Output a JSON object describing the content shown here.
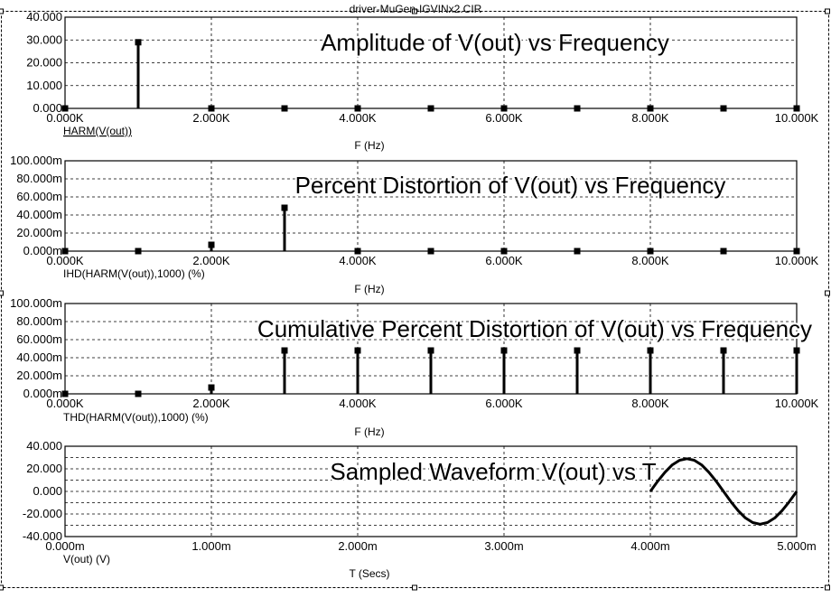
{
  "document_title": "driver-MuGen-IGVINx2.CIR",
  "chart_data": [
    {
      "type": "bar",
      "title": "Amplitude of V(out) vs Frequency",
      "xlabel": "F (Hz)",
      "trace_label": "HARM(V(out))",
      "x_ticks": [
        "0.000K",
        "2.000K",
        "4.000K",
        "6.000K",
        "8.000K",
        "10.000K"
      ],
      "y_ticks": [
        "40.000",
        "30.000",
        "20.000",
        "10.000",
        "0.000"
      ],
      "xlim": [
        0,
        10000
      ],
      "ylim": [
        0,
        40
      ],
      "grid": true,
      "x": [
        0,
        1000,
        2000,
        3000,
        4000,
        5000,
        6000,
        7000,
        8000,
        9000,
        10000
      ],
      "values": [
        0,
        29,
        0,
        0,
        0,
        0,
        0,
        0,
        0,
        0,
        0
      ]
    },
    {
      "type": "bar",
      "title": "Percent Distortion of V(out) vs Frequency",
      "xlabel": "F (Hz)",
      "trace_label": "IHD(HARM(V(out)),1000) (%)",
      "x_ticks": [
        "0.000K",
        "2.000K",
        "4.000K",
        "6.000K",
        "8.000K",
        "10.000K"
      ],
      "y_ticks": [
        "100.000m",
        "80.000m",
        "60.000m",
        "40.000m",
        "20.000m",
        "0.000m"
      ],
      "xlim": [
        0,
        10000
      ],
      "ylim": [
        0,
        100
      ],
      "grid": true,
      "x": [
        0,
        1000,
        2000,
        3000,
        4000,
        5000,
        6000,
        7000,
        8000,
        9000,
        10000
      ],
      "values": [
        0,
        0,
        7,
        48,
        0,
        0,
        0,
        0,
        0,
        0,
        0
      ]
    },
    {
      "type": "bar",
      "title": "Cumulative Percent Distortion of V(out) vs Frequency",
      "xlabel": "F (Hz)",
      "trace_label": "THD(HARM(V(out)),1000) (%)",
      "x_ticks": [
        "0.000K",
        "2.000K",
        "4.000K",
        "6.000K",
        "8.000K",
        "10.000K"
      ],
      "y_ticks": [
        "100.000m",
        "80.000m",
        "60.000m",
        "40.000m",
        "20.000m",
        "0.000m"
      ],
      "xlim": [
        0,
        10000
      ],
      "ylim": [
        0,
        100
      ],
      "grid": true,
      "x": [
        0,
        1000,
        2000,
        3000,
        4000,
        5000,
        6000,
        7000,
        8000,
        9000,
        10000
      ],
      "values": [
        0,
        0,
        7,
        48,
        48,
        48,
        48,
        48,
        48,
        48,
        48
      ]
    },
    {
      "type": "line",
      "title": "Sampled Waveform  V(out) vs T",
      "xlabel": "T (Secs)",
      "trace_label": "V(out) (V)",
      "x_ticks": [
        "0.000m",
        "1.000m",
        "2.000m",
        "3.000m",
        "4.000m",
        "5.000m"
      ],
      "y_ticks": [
        "40.000",
        "20.000",
        "0.000",
        "-20.000",
        "-40.000"
      ],
      "xlim": [
        0,
        5
      ],
      "ylim": [
        -40,
        40
      ],
      "grid": true,
      "y_minor_divisions": 8,
      "series": [
        {
          "x": [
            4.0,
            4.05,
            4.1,
            4.15,
            4.2,
            4.25,
            4.3,
            4.35,
            4.4,
            4.45,
            4.5,
            4.55,
            4.6,
            4.65,
            4.7,
            4.75,
            4.8,
            4.85,
            4.9,
            4.95,
            5.0
          ],
          "y": [
            0,
            9.0,
            17.0,
            23.5,
            27.6,
            29.0,
            27.6,
            23.5,
            17.0,
            9.0,
            0,
            -9.0,
            -17.0,
            -23.5,
            -27.6,
            -29.0,
            -27.6,
            -23.5,
            -17.0,
            -9.0,
            0
          ]
        }
      ]
    }
  ]
}
